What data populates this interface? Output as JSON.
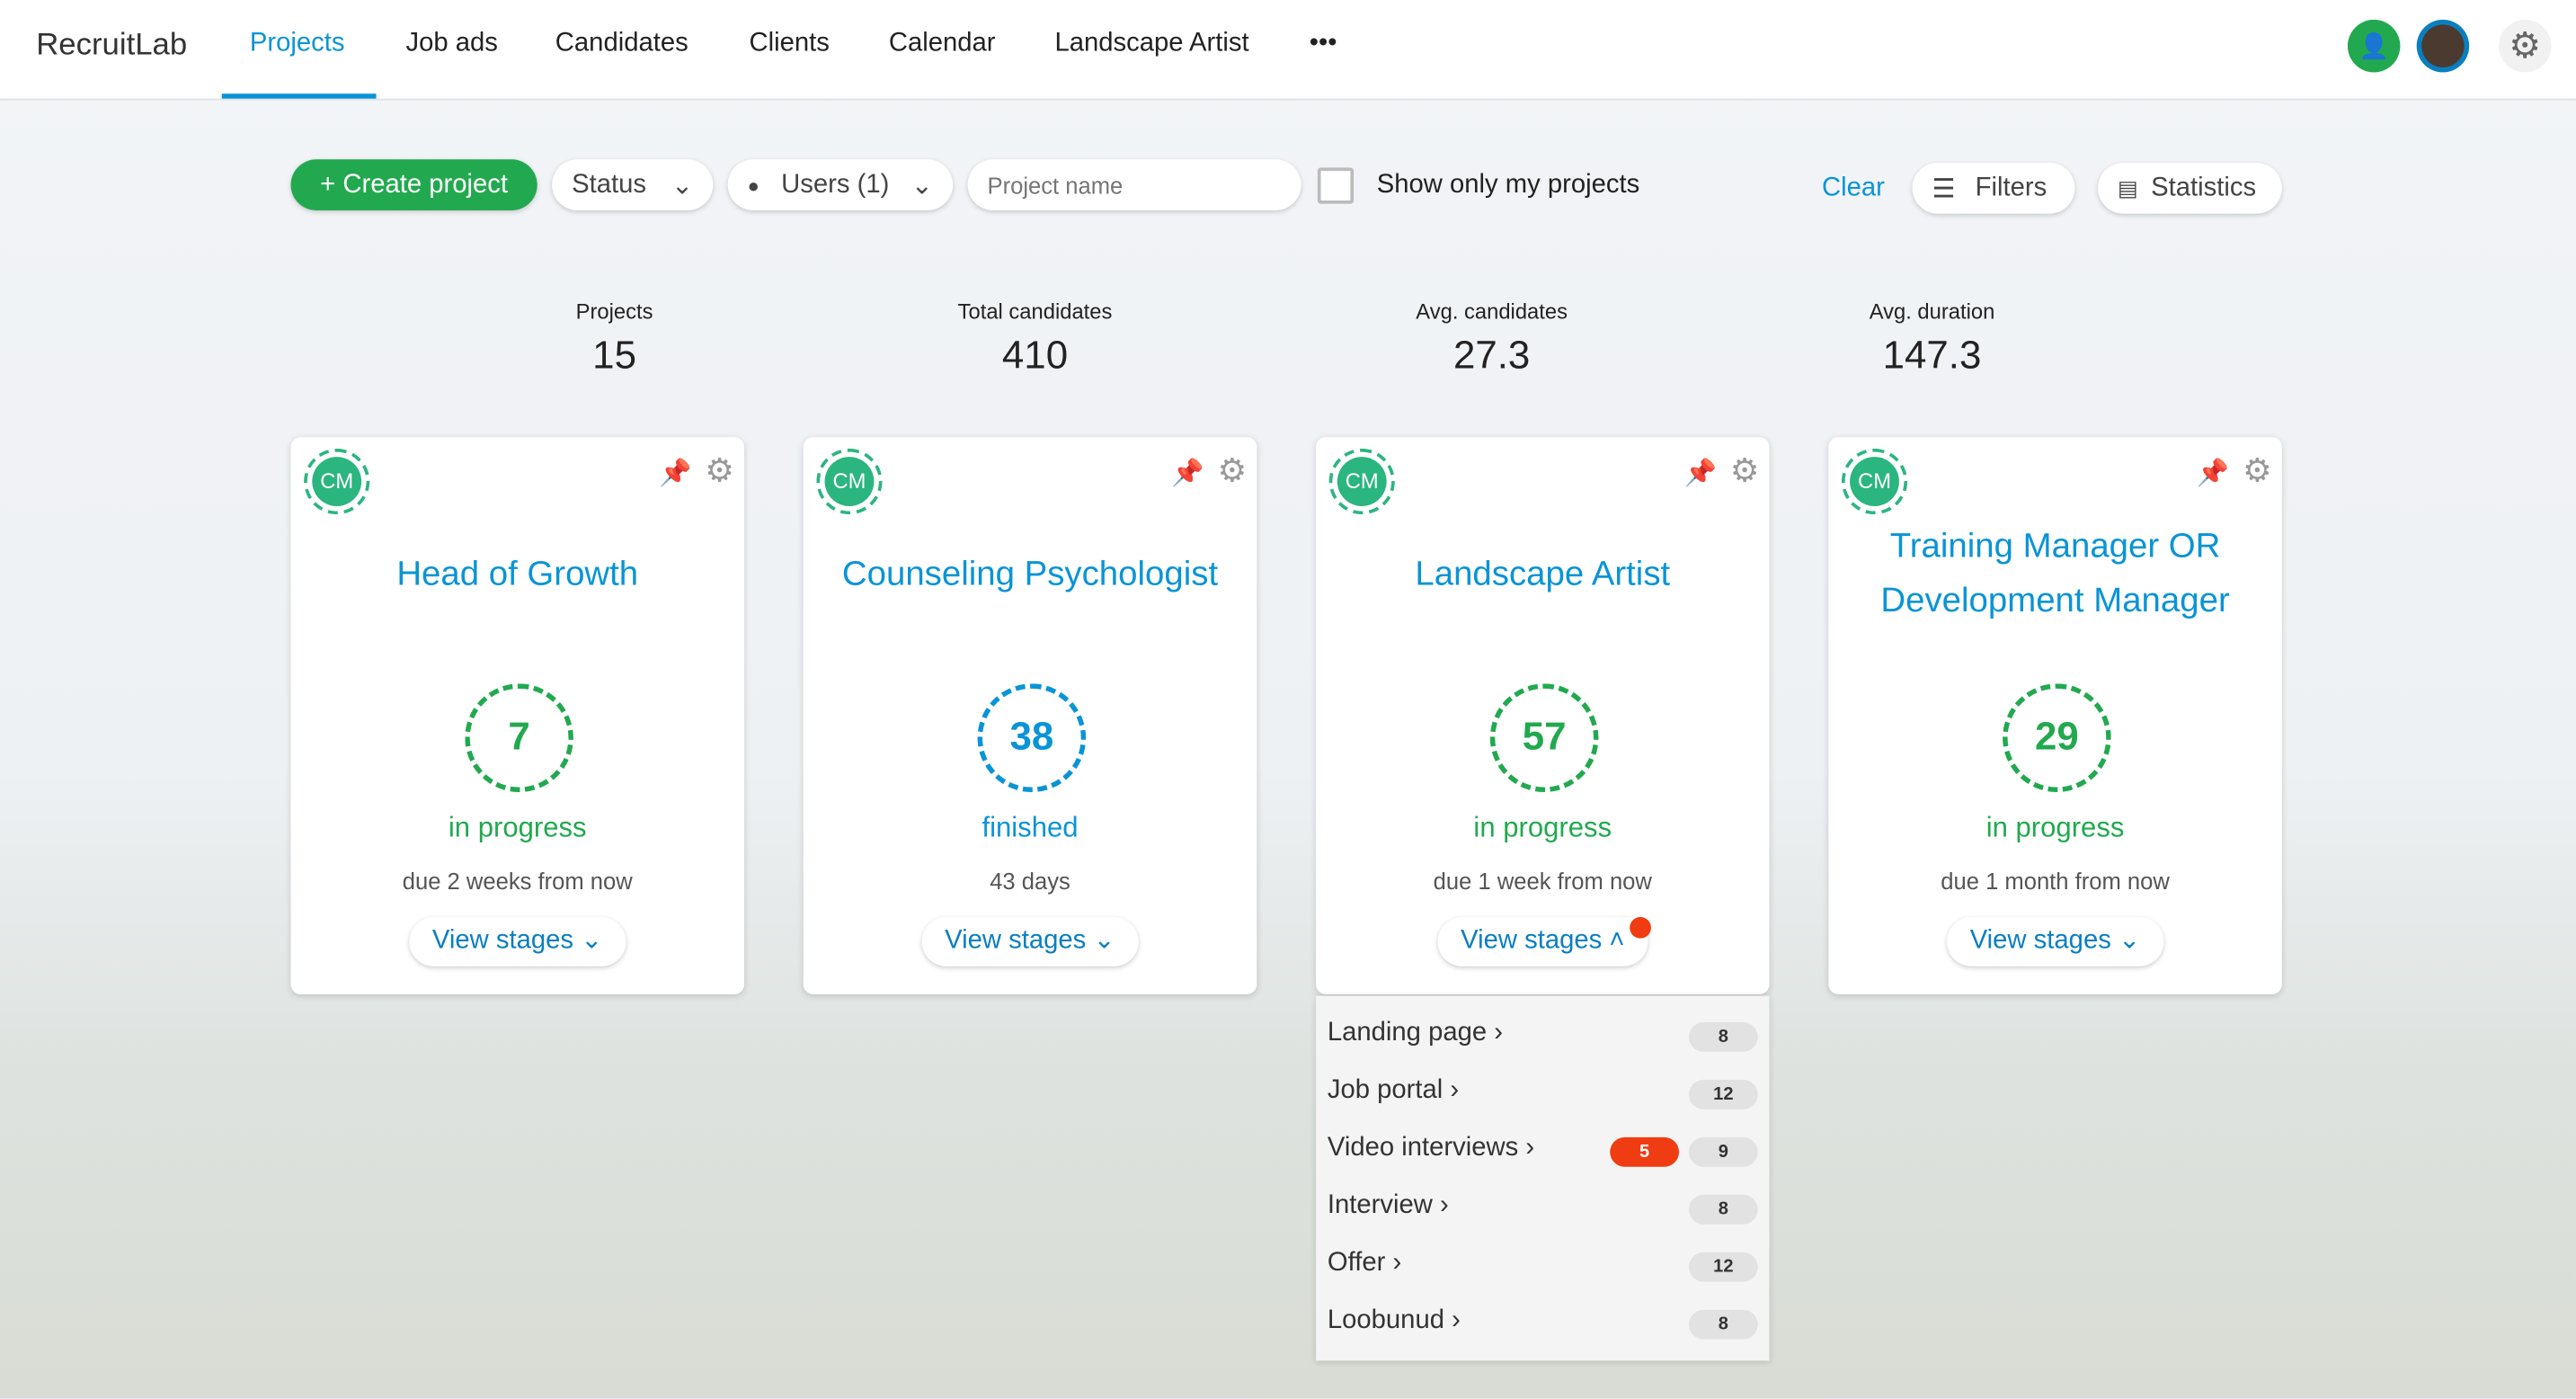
{
  "app": {
    "logo": "RecruitLab"
  },
  "nav": [
    "Projects",
    "Job ads",
    "Candidates",
    "Clients",
    "Calendar",
    "Landscape Artist",
    "•••"
  ],
  "toolbar": {
    "create": "+ Create project",
    "status": "Status",
    "users": "Users (1)",
    "search_placeholder": "Project name",
    "only_mine": "Show only my projects",
    "clear": "Clear",
    "filters": "Filters",
    "statistics": "Statistics"
  },
  "stats": [
    {
      "label": "Projects",
      "value": "15"
    },
    {
      "label": "Total candidates",
      "value": "410"
    },
    {
      "label": "Avg. candidates",
      "value": "27.3"
    },
    {
      "label": "Avg. duration",
      "value": "147.3"
    }
  ],
  "cards": [
    {
      "initials": "CM",
      "title": "Head of Growth",
      "count": "7",
      "status": "in progress",
      "due": "due 2 weeks from now",
      "view": "View stages ⌄",
      "pinned": true
    },
    {
      "initials": "CM",
      "title": "Counseling Psychologist",
      "count": "38",
      "status": "finished",
      "due": "43 days",
      "view": "View stages ⌄",
      "pinned": true
    },
    {
      "initials": "CM",
      "title": "Landscape Artist",
      "count": "57",
      "status": "in progress",
      "due": "due 1 week from now",
      "view": "View stages ˄",
      "pinned": false
    },
    {
      "initials": "CM",
      "title": "Training Manager OR Development Manager",
      "count": "29",
      "status": "in progress",
      "due": "due 1 month from now",
      "view": "View stages ⌄",
      "pinned": false
    }
  ],
  "stages": [
    {
      "name": "Landing page ›",
      "count": "8"
    },
    {
      "name": "Job portal ›",
      "count": "12"
    },
    {
      "name": "Video interviews ›",
      "count": "9",
      "new": "5"
    },
    {
      "name": "Interview ›",
      "count": "8"
    },
    {
      "name": "Offer ›",
      "count": "12"
    },
    {
      "name": "Loobunud ›",
      "count": "8"
    }
  ],
  "colors": {
    "accent": "#0a94d6",
    "green": "#22a94f",
    "red": "#f03c12"
  }
}
